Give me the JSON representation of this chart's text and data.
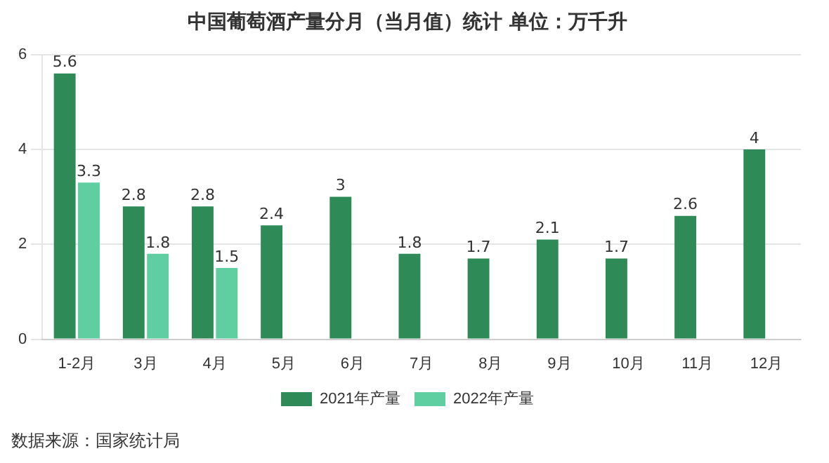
{
  "chart_data": {
    "type": "bar",
    "title": "中国葡萄酒产量分月（当月值）统计 单位：万千升",
    "categories": [
      "1-2月",
      "3月",
      "4月",
      "5月",
      "6月",
      "7月",
      "8月",
      "9月",
      "10月",
      "11月",
      "12月"
    ],
    "series": [
      {
        "name": "2021年产量",
        "color": "#2e8b57",
        "values": [
          5.6,
          2.8,
          2.8,
          2.4,
          3,
          1.8,
          1.7,
          2.1,
          1.7,
          2.6,
          4
        ]
      },
      {
        "name": "2022年产量",
        "color": "#5fcfa2",
        "values": [
          3.3,
          1.8,
          1.5,
          null,
          null,
          null,
          null,
          null,
          null,
          null,
          null
        ]
      }
    ],
    "ylim": [
      0,
      6
    ],
    "yticks": [
      0,
      2,
      4,
      6
    ],
    "grid": "y",
    "legend": "bottom",
    "data_labels": true,
    "annotations": [
      "数据来源：国家统计局"
    ]
  }
}
